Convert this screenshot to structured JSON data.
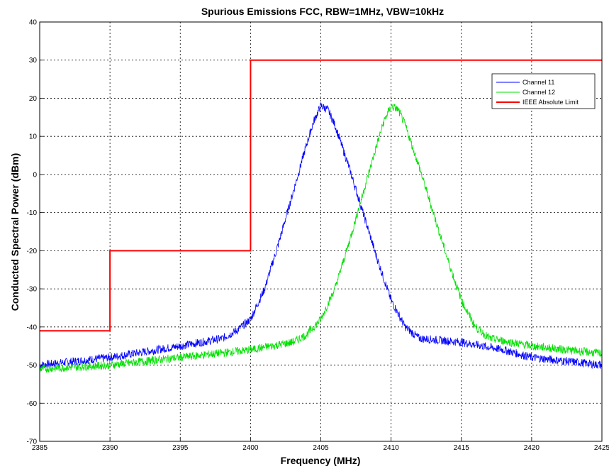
{
  "chart_data": {
    "type": "line",
    "title": "Spurious Emissions FCC, RBW=1MHz, VBW=10kHz",
    "xlabel": "Frequency (MHz)",
    "ylabel": "Conducted Spectral Power (dBm)",
    "xlim": [
      2385,
      2425
    ],
    "ylim": [
      -70,
      40
    ],
    "xticks": [
      2385,
      2390,
      2395,
      2400,
      2405,
      2410,
      2415,
      2420,
      2425
    ],
    "yticks": [
      -70,
      -60,
      -50,
      -40,
      -30,
      -20,
      -10,
      0,
      10,
      20,
      30,
      40
    ],
    "grid": true,
    "legend_position": "top-right",
    "series": [
      {
        "name": "Channel 11",
        "color": "#0000ff",
        "x": [
          2385,
          2390,
          2395,
          2398,
          2399,
          2400,
          2401,
          2402,
          2403,
          2404,
          2404.5,
          2405,
          2405.5,
          2406,
          2407,
          2408,
          2409,
          2410,
          2411,
          2412,
          2415,
          2418,
          2420,
          2425
        ],
        "y": [
          -50,
          -48,
          -45,
          -43,
          -41,
          -38,
          -30,
          -18,
          -5,
          8,
          14,
          18,
          17,
          13,
          2,
          -10,
          -22,
          -33,
          -40,
          -43,
          -44,
          -46,
          -48,
          -50
        ]
      },
      {
        "name": "Channel 12",
        "color": "#00e000",
        "x": [
          2385,
          2390,
          2395,
          2400,
          2403,
          2404,
          2405,
          2406,
          2407,
          2408,
          2409,
          2409.5,
          2410,
          2410.5,
          2411,
          2412,
          2413,
          2414,
          2415,
          2416,
          2417,
          2420,
          2425
        ],
        "y": [
          -51,
          -50,
          -48,
          -46,
          -44,
          -42,
          -38,
          -30,
          -18,
          -5,
          8,
          14,
          18,
          17,
          13,
          2,
          -10,
          -22,
          -33,
          -40,
          -43,
          -45,
          -47
        ]
      },
      {
        "name": "IEEE Absolute Limit",
        "color": "#ff0000",
        "x": [
          2385,
          2390,
          2390,
          2400,
          2400,
          2425
        ],
        "y": [
          -41,
          -41,
          -20,
          -20,
          30,
          30
        ]
      }
    ]
  }
}
